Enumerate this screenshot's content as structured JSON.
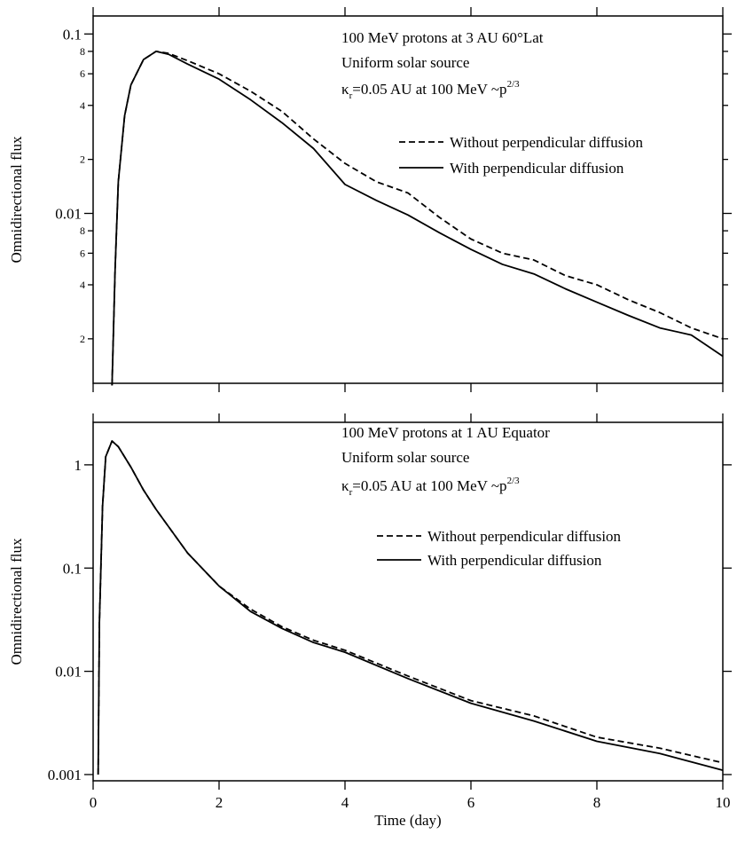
{
  "chart_data": [
    {
      "type": "line",
      "log_y": true,
      "annotations": [
        "100 MeV protons at 3 AU 60°Lat",
        "Uniform solar source"
      ],
      "kappa": {
        "symbol": "κ",
        "subscript": "r",
        "text": "=0.05 AU at 100 MeV ~p",
        "superscript": "2/3"
      },
      "ylabel": "Omnidirectional flux",
      "legend": "upper right",
      "x": [
        0.3,
        0.35,
        0.4,
        0.5,
        0.6,
        0.8,
        1.0,
        1.2,
        1.5,
        2,
        2.5,
        3,
        3.5,
        4,
        4.5,
        5,
        5.5,
        6,
        6.5,
        7,
        7.5,
        8,
        8.5,
        9,
        9.5,
        10
      ],
      "series": [
        {
          "name": "Without perpendicular diffusion",
          "color": "#000000",
          "linestyle": "dashed",
          "values": [
            0.0011,
            0.005,
            0.015,
            0.035,
            0.052,
            0.072,
            0.08,
            0.078,
            0.071,
            0.06,
            0.048,
            0.037,
            0.026,
            0.019,
            0.015,
            0.013,
            0.0095,
            0.0072,
            0.006,
            0.0055,
            0.0045,
            0.004,
            0.0033,
            0.0028,
            0.0023,
            0.002
          ]
        },
        {
          "name": "With perpendicular diffusion",
          "color": "#000000",
          "linestyle": "solid",
          "values": [
            0.0011,
            0.005,
            0.015,
            0.035,
            0.052,
            0.072,
            0.08,
            0.077,
            0.068,
            0.056,
            0.043,
            0.032,
            0.023,
            0.0145,
            0.0118,
            0.0098,
            0.0078,
            0.0063,
            0.0052,
            0.0046,
            0.0038,
            0.0032,
            0.0027,
            0.0023,
            0.0021,
            0.0016
          ]
        }
      ],
      "xlim": [
        0,
        10
      ],
      "xticks": [
        0,
        2,
        4,
        6,
        8,
        10
      ],
      "show_xtick_labels": false,
      "ylim": [
        0.00113,
        0.126
      ],
      "yticks": [
        {
          "value": 0.1,
          "label": "0.1"
        },
        {
          "value": 0.08,
          "label": "8"
        },
        {
          "value": 0.06,
          "label": "6"
        },
        {
          "value": 0.04,
          "label": "4"
        },
        {
          "value": 0.02,
          "label": "2"
        },
        0.01,
        {
          "value": 0.008,
          "label": "8"
        },
        {
          "value": 0.006,
          "label": "6"
        },
        {
          "value": 0.004,
          "label": "4"
        },
        {
          "value": 0.002,
          "label": "2"
        }
      ]
    },
    {
      "type": "line",
      "log_y": true,
      "annotations": [
        "100 MeV protons at 1 AU Equator",
        "Uniform solar source"
      ],
      "kappa": {
        "symbol": "κ",
        "subscript": "r",
        "text": "=0.05 AU at 100 MeV ~p",
        "superscript": "2/3"
      },
      "ylabel": "Omnidirectional flux",
      "xlabel": "Time (day)",
      "legend": "upper right",
      "x": [
        0.08,
        0.1,
        0.15,
        0.2,
        0.3,
        0.4,
        0.6,
        0.8,
        1,
        1.5,
        2,
        2.5,
        3,
        3.5,
        4,
        5,
        6,
        7,
        8,
        9,
        10
      ],
      "series": [
        {
          "name": "Without perpendicular diffusion",
          "color": "#000000",
          "linestyle": "dashed",
          "values": [
            0.001,
            0.03,
            0.4,
            1.2,
            1.7,
            1.5,
            0.95,
            0.57,
            0.37,
            0.14,
            0.067,
            0.04,
            0.027,
            0.02,
            0.016,
            0.009,
            0.0052,
            0.0037,
            0.0023,
            0.0018,
            0.0013
          ]
        },
        {
          "name": "With perpendicular diffusion",
          "color": "#000000",
          "linestyle": "solid",
          "values": [
            0.001,
            0.03,
            0.4,
            1.2,
            1.7,
            1.5,
            0.95,
            0.57,
            0.37,
            0.14,
            0.067,
            0.038,
            0.026,
            0.019,
            0.0153,
            0.0085,
            0.0049,
            0.0033,
            0.0021,
            0.0016,
            0.0011
          ]
        }
      ],
      "xlim": [
        0,
        10
      ],
      "xticks": [
        0,
        2,
        4,
        6,
        8,
        10
      ],
      "show_xtick_labels": true,
      "ylim": [
        0.00087,
        2.58
      ],
      "yticks": [
        1,
        0.1,
        0.01,
        0.001
      ]
    }
  ]
}
